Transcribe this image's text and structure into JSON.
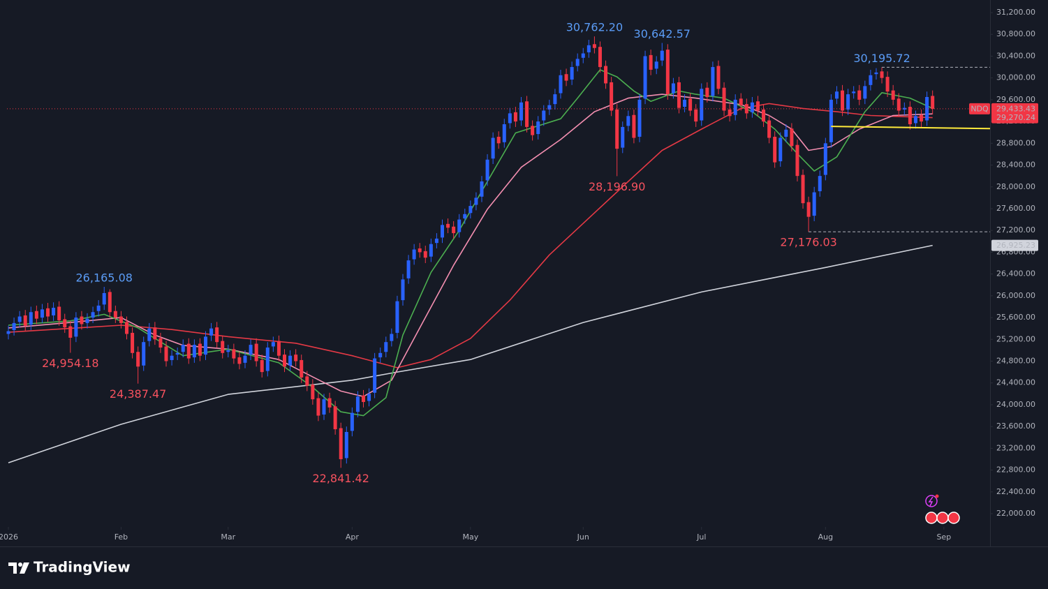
{
  "chart_data": {
    "type": "candlestick",
    "up_color": "#2962ff",
    "down_color": "#f23645",
    "xlim": [
      -0.25,
      174.2
    ],
    "ylim": [
      21757,
      31431
    ],
    "grid": false,
    "xticks": [
      {
        "value": 0,
        "label": "2026"
      },
      {
        "value": 20,
        "label": "Feb"
      },
      {
        "value": 39,
        "label": "Mar"
      },
      {
        "value": 61,
        "label": "Apr"
      },
      {
        "value": 82,
        "label": "May"
      },
      {
        "value": 102,
        "label": "Jun"
      },
      {
        "value": 123,
        "label": "Jul"
      },
      {
        "value": 145,
        "label": "Aug"
      },
      {
        "value": 166,
        "label": "Sep"
      }
    ],
    "yticks": [
      {
        "value": 22000,
        "label": "22,000.00"
      },
      {
        "value": 22400,
        "label": "22,400.00"
      },
      {
        "value": 22800,
        "label": "22,800.00"
      },
      {
        "value": 23200,
        "label": "23,200.00"
      },
      {
        "value": 23600,
        "label": "23,600.00"
      },
      {
        "value": 24000,
        "label": "24,000.00"
      },
      {
        "value": 24400,
        "label": "24,400.00"
      },
      {
        "value": 24800,
        "label": "24,800.00"
      },
      {
        "value": 25200,
        "label": "25,200.00"
      },
      {
        "value": 25600,
        "label": "25,600.00"
      },
      {
        "value": 26000,
        "label": "26,000.00"
      },
      {
        "value": 26400,
        "label": "26,400.00"
      },
      {
        "value": 26800,
        "label": "26,800.00"
      },
      {
        "value": 27200,
        "label": "27,200.00"
      },
      {
        "value": 27600,
        "label": "27,600.00"
      },
      {
        "value": 28000,
        "label": "28,000.00"
      },
      {
        "value": 28400,
        "label": "28,400.00"
      },
      {
        "value": 28800,
        "label": "28,800.00"
      },
      {
        "value": 29200,
        "label": "29,200.00"
      },
      {
        "value": 29600,
        "label": "29,600.00"
      },
      {
        "value": 30000,
        "label": "30,000.00"
      },
      {
        "value": 30400,
        "label": "30,400.00"
      },
      {
        "value": 30800,
        "label": "30,800.00"
      },
      {
        "value": 31200,
        "label": "31,200.00"
      }
    ],
    "open": [
      25300,
      25370,
      25520,
      25640,
      25470,
      25720,
      25600,
      25770,
      25640,
      25800,
      25570,
      25440,
      25250,
      25620,
      25500,
      25600,
      25720,
      25840,
      26070,
      25720,
      25620,
      25520,
      25320,
      24970,
      24720,
      25170,
      25420,
      25220,
      25070,
      24820,
      24920,
      24970,
      25120,
      24870,
      25120,
      24920,
      25270,
      25420,
      25170,
      24970,
      25020,
      24870,
      24770,
      24920,
      25120,
      24820,
      24620,
      25070,
      25170,
      24920,
      24720,
      24920,
      24820,
      24520,
      24370,
      24120,
      23820,
      24120,
      23970,
      23570,
      23020,
      23520,
      23870,
      24170,
      24070,
      24220,
      24870,
      24970,
      25170,
      25320,
      25920,
      26320,
      26670,
      26870,
      26820,
      26720,
      26970,
      27070,
      27320,
      27270,
      27170,
      27420,
      27520,
      27670,
      27820,
      28120,
      28520,
      28920,
      28820,
      29170,
      29370,
      29220,
      29570,
      29120,
      28970,
      29220,
      29420,
      29520,
      29720,
      30070,
      29970,
      30220,
      30370,
      30470,
      30620,
      30570,
      30220,
      29920,
      29420,
      28720,
      29120,
      29320,
      28920,
      29620,
      30420,
      30170,
      30320,
      30520,
      29720,
      29920,
      29470,
      29620,
      29420,
      29220,
      29820,
      29670,
      30220,
      29820,
      29420,
      29320,
      29620,
      29520,
      29370,
      29570,
      29420,
      29220,
      28920,
      28470,
      28920,
      29070,
      28770,
      28220,
      27720,
      27470,
      27920,
      28220,
      28820,
      29620,
      29770,
      29420,
      29720,
      29770,
      29620,
      29870,
      30070,
      30120,
      30020,
      29770,
      29620,
      29420,
      29470,
      29170,
      29320,
      29220,
      29670
    ],
    "high": [
      25450,
      25600,
      25720,
      25740,
      25800,
      25820,
      25850,
      25870,
      25880,
      25900,
      25670,
      25540,
      25700,
      25720,
      25680,
      25800,
      25920,
      26165.08,
      26120,
      25820,
      25720,
      25620,
      25420,
      25070,
      25250,
      25500,
      25520,
      25320,
      25170,
      25000,
      25050,
      25200,
      25220,
      25200,
      25220,
      25350,
      25500,
      25520,
      25270,
      25100,
      25120,
      24970,
      25000,
      25200,
      25220,
      24920,
      25150,
      25250,
      25270,
      25020,
      25000,
      25020,
      24920,
      24620,
      24470,
      24220,
      24200,
      24220,
      24070,
      23670,
      23600,
      23950,
      24250,
      24270,
      24300,
      24950,
      25050,
      25250,
      25400,
      26000,
      26400,
      26750,
      26950,
      26970,
      26920,
      27050,
      27150,
      27400,
      27420,
      27370,
      27500,
      27600,
      27750,
      27900,
      28200,
      28600,
      29000,
      29020,
      29250,
      29450,
      29470,
      29650,
      29670,
      29220,
      29300,
      29500,
      29600,
      29800,
      30150,
      30170,
      30300,
      30450,
      30550,
      30700,
      30762.2,
      30670,
      30320,
      30020,
      29520,
      29200,
      29400,
      29420,
      29700,
      30500,
      30520,
      30400,
      30642.57,
      30620,
      30000,
      30020,
      29700,
      29720,
      29520,
      29900,
      29920,
      30300,
      30320,
      29920,
      29520,
      29700,
      29720,
      29620,
      29650,
      29670,
      29520,
      29320,
      29020,
      29000,
      29150,
      29170,
      28870,
      28320,
      27820,
      28000,
      28300,
      28900,
      29700,
      29850,
      29870,
      29800,
      29850,
      29870,
      29950,
      30150,
      30180,
      30195.72,
      30120,
      29870,
      29720,
      29550,
      29570,
      29400,
      29420,
      29750,
      29770
    ],
    "low": [
      25200,
      25270,
      25420,
      25350,
      25370,
      25480,
      25500,
      25520,
      25540,
      25450,
      25320,
      24954.18,
      25150,
      25380,
      25400,
      25500,
      25620,
      25740,
      25600,
      25500,
      25400,
      25200,
      24850,
      24387.47,
      24620,
      25070,
      25100,
      24950,
      24700,
      24720,
      24820,
      24870,
      24750,
      24770,
      24800,
      24820,
      25170,
      25050,
      24850,
      24870,
      24750,
      24650,
      24670,
      24820,
      24700,
      24500,
      24520,
      24970,
      24800,
      24600,
      24620,
      24700,
      24400,
      24250,
      24000,
      23700,
      23720,
      23850,
      23450,
      22841.42,
      22920,
      23420,
      23770,
      23950,
      23970,
      24120,
      24770,
      24870,
      25070,
      25220,
      25820,
      26220,
      26570,
      26700,
      26600,
      26620,
      26870,
      26970,
      27150,
      27050,
      27070,
      27320,
      27420,
      27570,
      27720,
      28020,
      28420,
      28700,
      28720,
      29070,
      29100,
      29120,
      29000,
      28850,
      28870,
      29120,
      29320,
      29420,
      29620,
      29850,
      29870,
      30120,
      30270,
      30370,
      30450,
      30100,
      29800,
      29300,
      28196.9,
      28620,
      29020,
      28800,
      28820,
      29520,
      30050,
      30070,
      30220,
      29600,
      29620,
      29350,
      29370,
      29300,
      29100,
      29120,
      29550,
      29570,
      29700,
      29300,
      29200,
      29220,
      29400,
      29250,
      29270,
      29300,
      29100,
      28800,
      28350,
      28370,
      28820,
      28650,
      28100,
      27600,
      27176.03,
      27370,
      27820,
      28120,
      28720,
      29520,
      29300,
      29320,
      29620,
      29500,
      29520,
      29770,
      29970,
      29900,
      29650,
      29500,
      29300,
      29320,
      29050,
      29070,
      29100,
      29120,
      29330
    ],
    "close": [
      25350,
      25500,
      25620,
      25450,
      25700,
      25580,
      25750,
      25620,
      25780,
      25550,
      25420,
      25230,
      25600,
      25480,
      25580,
      25700,
      25820,
      26050,
      25700,
      25600,
      25500,
      25300,
      24950,
      24700,
      25150,
      25400,
      25200,
      25050,
      24800,
      24900,
      24950,
      25100,
      24850,
      25100,
      24900,
      25250,
      25400,
      25150,
      24950,
      25000,
      24850,
      24750,
      24900,
      25100,
      24800,
      24600,
      25050,
      25150,
      24900,
      24700,
      24900,
      24800,
      24500,
      24350,
      24100,
      23800,
      24100,
      23950,
      23550,
      23000,
      23500,
      23850,
      24150,
      24050,
      24200,
      24850,
      24950,
      25150,
      25300,
      25900,
      26300,
      26650,
      26850,
      26800,
      26700,
      26950,
      27050,
      27300,
      27250,
      27150,
      27400,
      27500,
      27650,
      27800,
      28100,
      28500,
      28900,
      28800,
      29150,
      29350,
      29200,
      29550,
      29100,
      28950,
      29200,
      29400,
      29500,
      29700,
      30050,
      29950,
      30200,
      30350,
      30450,
      30600,
      30550,
      30200,
      29900,
      29400,
      28700,
      29100,
      29300,
      28900,
      29600,
      30400,
      30150,
      30300,
      30500,
      29700,
      29900,
      29450,
      29600,
      29400,
      29200,
      29800,
      29650,
      30200,
      29800,
      29400,
      29300,
      29600,
      29500,
      29350,
      29550,
      29400,
      29200,
      28900,
      28450,
      28900,
      29050,
      28750,
      28200,
      27700,
      27450,
      27900,
      28200,
      28800,
      29600,
      29750,
      29400,
      29700,
      29750,
      29600,
      29850,
      30050,
      30100,
      30000,
      29750,
      29600,
      29400,
      29450,
      29150,
      29300,
      29200,
      29650,
      29433.43
    ],
    "series": [
      {
        "color": "#d1d4dc",
        "x": [
          0,
          20,
          39,
          61,
          69,
          82,
          102,
          123,
          145,
          164
        ],
        "values": [
          22935,
          23640,
          24190,
          24450,
          24600,
          24830,
          25510,
          26070,
          26520,
          26925.23
        ]
      },
      {
        "color": "#e53945",
        "x": [
          0,
          20,
          29,
          39,
          51,
          61,
          69,
          75,
          82,
          89,
          96,
          102,
          110,
          116,
          123,
          130,
          135,
          141,
          147,
          153,
          164
        ],
        "values": [
          25330,
          25460,
          25380,
          25250,
          25130,
          24900,
          24680,
          24830,
          25215,
          25920,
          26750,
          27330,
          28100,
          28670,
          29060,
          29440,
          29530,
          29440,
          29380,
          29310,
          29270.24
        ]
      },
      {
        "color": "#f48fb1",
        "x": [
          0,
          11,
          20,
          26,
          31,
          39,
          48,
          54,
          59,
          63,
          68,
          73,
          79,
          85,
          91,
          98,
          104,
          110,
          116,
          122,
          130,
          135,
          139,
          142,
          146,
          151,
          157,
          164
        ],
        "values": [
          25410,
          25510,
          25600,
          25280,
          25090,
          25020,
          24830,
          24510,
          24250,
          24150,
          24450,
          25410,
          26560,
          27590,
          28360,
          28870,
          29380,
          29630,
          29700,
          29630,
          29510,
          29310,
          29060,
          28670,
          28740,
          29060,
          29310,
          29340
        ]
      },
      {
        "color": "#4caf50",
        "x": [
          0,
          11,
          17,
          23,
          31,
          39,
          48,
          54,
          59,
          63,
          67,
          70,
          75,
          80,
          85,
          90,
          98,
          101,
          105,
          108,
          111,
          114,
          119,
          122,
          127,
          132,
          136,
          140,
          143,
          147,
          152,
          155,
          160,
          164
        ],
        "values": [
          25460,
          25540,
          25660,
          25410,
          24900,
          25020,
          24770,
          24320,
          23870,
          23800,
          24130,
          25280,
          26430,
          27200,
          28100,
          28990,
          29250,
          29630,
          30150,
          30020,
          29760,
          29570,
          29760,
          29700,
          29630,
          29380,
          29060,
          28610,
          28290,
          28550,
          29380,
          29730,
          29630,
          29440
        ]
      }
    ],
    "annotations": [
      {
        "label": "26,165.08",
        "value": 26165.08,
        "color": "#5b9cf6",
        "level_line": false
      },
      {
        "label": "24,954.18",
        "value": 24954.18,
        "color": "#f7525f",
        "level_line": false
      },
      {
        "label": "24,387.47",
        "value": 24387.47,
        "color": "#f7525f",
        "level_line": false
      },
      {
        "label": "22,841.42",
        "value": 22841.42,
        "color": "#f7525f",
        "level_line": false
      },
      {
        "label": "30,762.20",
        "value": 30762.2,
        "color": "#5b9cf6",
        "level_line": false
      },
      {
        "label": "28,196.90",
        "value": 28196.9,
        "color": "#f7525f",
        "level_line": false
      },
      {
        "label": "30,642.57",
        "value": 30642.57,
        "color": "#5b9cf6",
        "level_line": false
      },
      {
        "label": "27,176.03",
        "value": 27176.03,
        "color": "#f7525f",
        "level_line": true
      },
      {
        "label": "30,195.72",
        "value": 30195.72,
        "color": "#5b9cf6",
        "level_line": true
      }
    ],
    "trendline": {
      "color": "#ffeb3b",
      "x": [
        146,
        174.2
      ],
      "values": [
        29110,
        29070
      ]
    },
    "price_tags": [
      {
        "value": 26925.23,
        "label": "26,925.23",
        "color": "#d1d4dc",
        "text_color": "#131722"
      },
      {
        "value": 29270.24,
        "label": "29,270.24",
        "color": "#f23645",
        "text_color": "#ffffff"
      },
      {
        "value": 29433.43,
        "label": "29,433.43",
        "name": "NDQ",
        "color": "#f23645",
        "text_color": "#ffffff",
        "price_line": true
      }
    ]
  },
  "brand": "TradingView"
}
